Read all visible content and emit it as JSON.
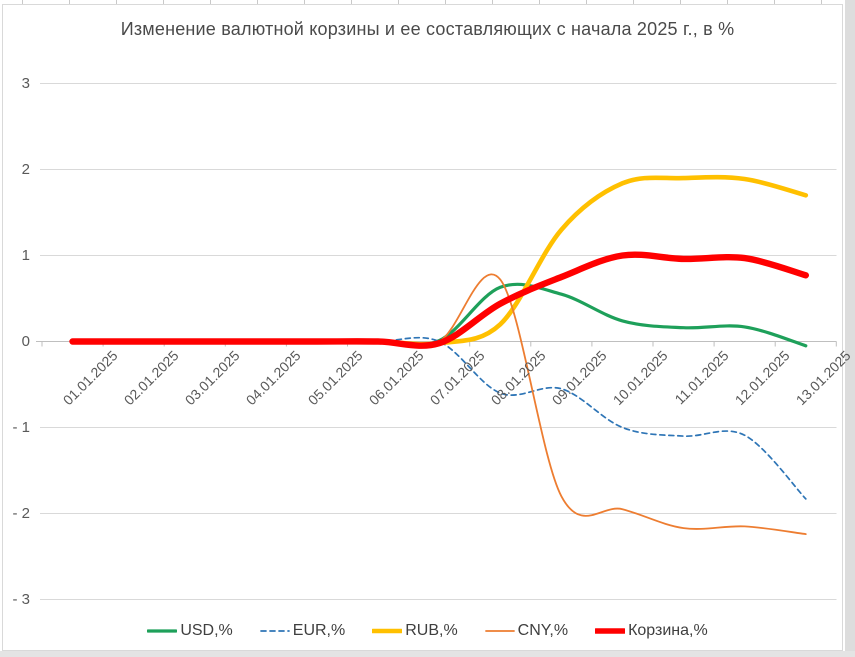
{
  "chart_data": {
    "type": "line",
    "title": "Изменение валютной корзины и ее составляющих с начала 2025 г., в %",
    "x_categories": [
      "01.01.2025",
      "02.01.2025",
      "03.01.2025",
      "04.01.2025",
      "05.01.2025",
      "06.01.2025",
      "07.01.2025",
      "08.01.2025",
      "09.01.2025",
      "10.01.2025",
      "11.01.2025",
      "12.01.2025",
      "13.01.2025"
    ],
    "y_axis": {
      "min": -3,
      "max": 3,
      "step": 1,
      "tick_values": [
        3,
        2,
        1,
        0,
        -1,
        -2,
        -3
      ],
      "tick_labels": [
        "3",
        "2",
        "1",
        "0",
        "- 1",
        "- 2",
        "- 3"
      ]
    },
    "grid": true,
    "smoothed_lines": true,
    "legend_position": "bottom",
    "series": [
      {
        "name": "USD,%",
        "color": "#1ea05a",
        "width": 3.2,
        "dash": null,
        "values": [
          0,
          0,
          0,
          0,
          0,
          0,
          0.01,
          0.63,
          0.55,
          0.24,
          0.16,
          0.17,
          -0.05
        ]
      },
      {
        "name": "EUR,%",
        "color": "#2e75b6",
        "width": 1.7,
        "dash": "5 4",
        "values": [
          0,
          0,
          0,
          0,
          0,
          0,
          0,
          -0.6,
          -0.55,
          -1.0,
          -1.1,
          -1.09,
          -1.83
        ]
      },
      {
        "name": "RUB,%",
        "color": "#ffc000",
        "width": 4.6,
        "dash": null,
        "values": [
          0,
          0,
          0,
          0,
          0,
          0,
          -0.02,
          0.2,
          1.3,
          1.84,
          1.9,
          1.89,
          1.7
        ]
      },
      {
        "name": "CNY,%",
        "color": "#ed7d31",
        "width": 1.8,
        "dash": null,
        "values": [
          0,
          0,
          0,
          0,
          0,
          0,
          0,
          0.72,
          -1.8,
          -1.95,
          -2.17,
          -2.15,
          -2.24
        ]
      },
      {
        "name": "Корзина,%",
        "color": "#ff0000",
        "width": 6.4,
        "dash": null,
        "values": [
          0,
          0,
          0,
          0,
          0,
          0,
          -0.02,
          0.44,
          0.75,
          1.0,
          0.96,
          0.97,
          0.77
        ]
      }
    ],
    "colors": {
      "gridline": "#d9d9d9",
      "zero_axis": "#bfbfbf",
      "axis_text": "#595959",
      "title_text": "#4a4a4a",
      "chart_border": "#d9d9d9"
    }
  }
}
